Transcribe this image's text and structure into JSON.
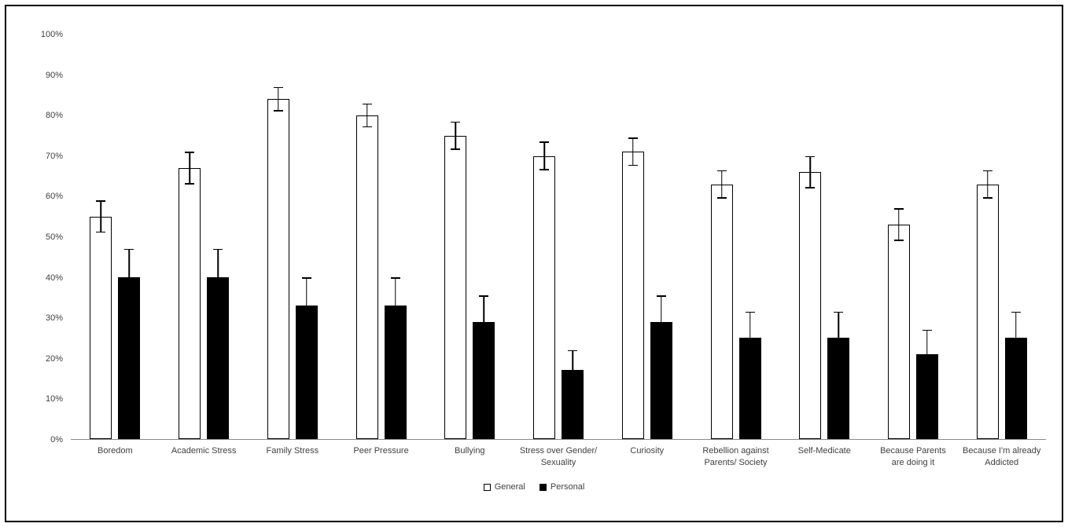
{
  "chart_data": {
    "type": "bar",
    "title": "",
    "xlabel": "",
    "ylabel": "",
    "ylim": [
      0,
      100
    ],
    "ytick_step": 10,
    "ytick_labels": [
      "0%",
      "10%",
      "20%",
      "30%",
      "40%",
      "50%",
      "60%",
      "70%",
      "80%",
      "90%",
      "100%"
    ],
    "grid": false,
    "legend_position": "bottom",
    "error_bars": true,
    "categories": [
      "Boredom",
      "Academic Stress",
      "Family Stress",
      "Peer Pressure",
      "Bullying",
      "Stress over Gender/ Sexuality",
      "Curiosity",
      "Rebellion against Parents/ Society",
      "Self-Medicate",
      "Because Parents are doing it",
      "Because I'm already Addicted"
    ],
    "series": [
      {
        "name": "General",
        "fill": "#ffffff",
        "border": "#000000",
        "values": [
          55,
          67,
          84,
          80,
          75,
          70,
          71,
          63,
          66,
          53,
          63
        ],
        "errors": [
          4,
          4,
          3,
          3,
          3.5,
          3.5,
          3.5,
          3.5,
          4,
          4,
          3.5
        ]
      },
      {
        "name": "Personal",
        "fill": "#000000",
        "border": "#000000",
        "values": [
          40,
          40,
          33,
          33,
          29,
          17,
          29,
          25,
          25,
          21,
          25
        ],
        "errors": [
          7,
          7,
          7,
          7,
          6.5,
          5,
          6.5,
          6.5,
          6.5,
          6,
          6.5
        ]
      }
    ]
  }
}
